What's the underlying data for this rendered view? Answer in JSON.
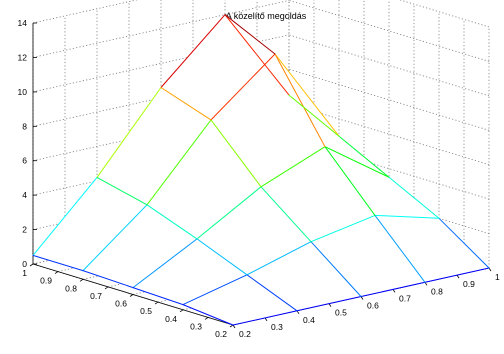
{
  "chart_data": {
    "type": "surface",
    "title": "A közelítő megoldás",
    "x": [
      0.2,
      0.4,
      0.6,
      0.8,
      1.0
    ],
    "y": [
      0.2,
      0.4,
      0.6,
      0.8,
      1.0
    ],
    "z": [
      [
        0.0,
        0.0,
        0.0,
        0.0,
        0.0
      ],
      [
        0.3,
        1.2,
        2.3,
        3.0,
        2.0
      ],
      [
        0.4,
        2.4,
        4.6,
        6.1,
        3.5
      ],
      [
        0.5,
        3.5,
        7.6,
        10.6,
        5.0
      ],
      [
        0.5,
        4.2,
        8.6,
        12.0,
        6.5
      ]
    ],
    "xlim": [
      0.2,
      1
    ],
    "ylim": [
      0.2,
      1
    ],
    "zlim": [
      0,
      14
    ],
    "xticks": [
      "0.2",
      "0.3",
      "0.4",
      "0.5",
      "0.6",
      "0.7",
      "0.8",
      "0.9",
      "1"
    ],
    "yticks": [
      "0.2",
      "0.3",
      "0.4",
      "0.5",
      "0.6",
      "0.7",
      "0.8",
      "0.9",
      "1"
    ],
    "zticks": [
      "0",
      "2",
      "4",
      "6",
      "8",
      "10",
      "12",
      "14"
    ],
    "grid": true,
    "colormap": [
      "#0000ff",
      "#00ffff",
      "#00ff00",
      "#ffff00",
      "#ff0000",
      "#800000"
    ]
  }
}
